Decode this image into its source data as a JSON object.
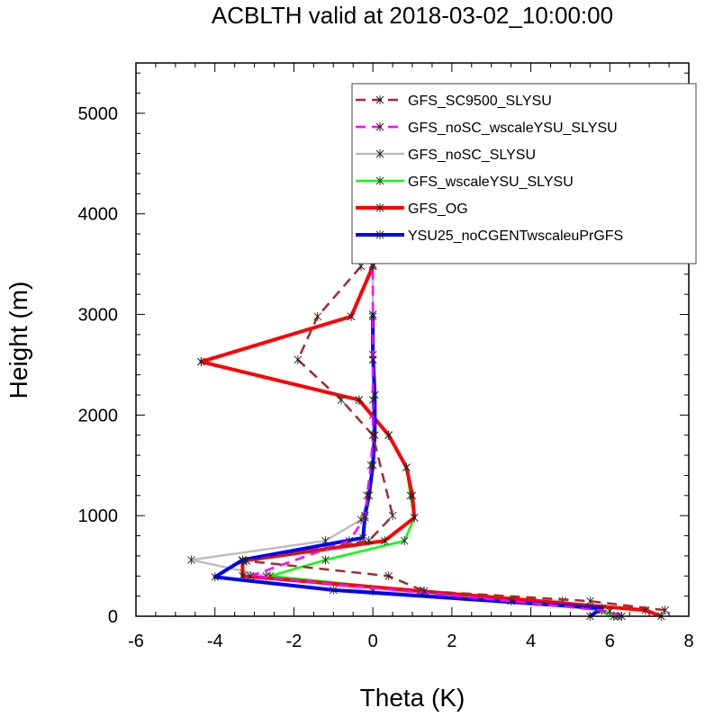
{
  "chart_data": {
    "type": "line",
    "title": "ACBLTH valid at 2018-03-02_10:00:00",
    "xlabel": "Theta (K)",
    "ylabel": "Height (m)",
    "xlim": [
      -6,
      8
    ],
    "ylim": [
      0,
      5500
    ],
    "xticks": [
      "-6",
      "-4",
      "-2",
      "0",
      "2",
      "4",
      "6",
      "8"
    ],
    "yticks": [
      "0",
      "1000",
      "2000",
      "3000",
      "4000",
      "5000"
    ],
    "legend_position": "top-right",
    "series": [
      {
        "name": "GFS_SC9500_SLYSU",
        "color": "#a52a2a",
        "dash": "dashed",
        "x": [
          7.4,
          5.5,
          1.3,
          0.4,
          -3.2,
          -0.1,
          0.5,
          0.0,
          -0.8,
          -1.9,
          -1.4,
          -0.3,
          0.0,
          0.05,
          0.0
        ],
        "y": [
          60,
          150,
          250,
          400,
          550,
          750,
          1000,
          1800,
          2150,
          2550,
          2980,
          3480,
          4030,
          4600,
          5160
        ]
      },
      {
        "name": "GFS_noSC_wscaleYSU_SLYSU",
        "color": "#ff00ff",
        "dash": "dashed",
        "x": [
          6.3,
          6.0,
          3.5,
          -3.1,
          -0.6,
          -0.2,
          -0.15,
          -0.05,
          0.0,
          0.0,
          0.0,
          0.0,
          0.0,
          0.0,
          0.0
        ],
        "y": [
          0,
          50,
          150,
          400,
          750,
          980,
          1200,
          1500,
          1800,
          2150,
          2550,
          2980,
          3480,
          4030,
          4600
        ]
      },
      {
        "name": "GFS_noSC_SLYSU",
        "color": "#bebebe",
        "dash": "solid",
        "x": [
          6.1,
          4.8,
          0.0,
          -2.7,
          -4.6,
          -1.2,
          -0.3,
          -0.1,
          0.0,
          0.0,
          0.0,
          0.0,
          0.0
        ],
        "y": [
          0,
          150,
          250,
          400,
          560,
          750,
          960,
          1200,
          1500,
          2000,
          2550,
          3000,
          3500
        ]
      },
      {
        "name": "GFS_wscaleYSU_SLYSU",
        "color": "#00ff00",
        "dash": "solid",
        "x": [
          6.2,
          5.8,
          1.2,
          -2.6,
          -1.2,
          0.8,
          1.05,
          0.95,
          0.85,
          0.4,
          -0.35,
          -4.35,
          -0.55,
          0.0
        ],
        "y": [
          0,
          60,
          250,
          400,
          560,
          750,
          980,
          1200,
          1480,
          1800,
          2150,
          2530,
          2980,
          3480
        ]
      },
      {
        "name": "GFS_OG",
        "color": "#ff0000",
        "dash": "solid",
        "x": [
          7.3,
          6.9,
          1.2,
          -3.3,
          -3.3,
          0.3,
          1.05,
          1.0,
          0.85,
          0.4,
          -0.35,
          -4.35,
          -0.55,
          0.0
        ],
        "y": [
          0,
          60,
          250,
          400,
          550,
          750,
          980,
          1200,
          1480,
          1800,
          2150,
          2530,
          2980,
          3480
        ]
      },
      {
        "name": "YSU25_noCGENTwscaleuPrGFS",
        "color": "#0000ff",
        "dash": "solid",
        "x": [
          5.5,
          5.8,
          -1.0,
          -4.0,
          -3.3,
          -0.25,
          -0.2,
          -0.1,
          0.0,
          0.05,
          0.05,
          0.0,
          0.0
        ],
        "y": [
          0,
          80,
          260,
          390,
          560,
          780,
          1000,
          1200,
          1500,
          1800,
          2200,
          2600,
          3000
        ]
      }
    ]
  }
}
